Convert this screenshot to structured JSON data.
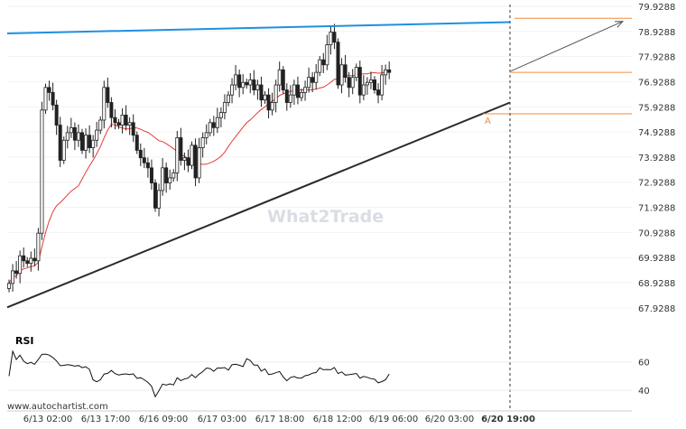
{
  "chart_data": {
    "type": "candlestick",
    "price_ticks": [
      "79.9288",
      "78.9288",
      "77.9288",
      "76.9288",
      "75.9288",
      "74.9288",
      "73.9288",
      "72.9288",
      "71.9288",
      "70.9288",
      "69.9288",
      "68.9288",
      "67.9288"
    ],
    "time_ticks": [
      "6/13 02:00",
      "6/13 17:00",
      "6/16 09:00",
      "6/17 03:00",
      "6/17 18:00",
      "6/18 12:00",
      "6/19 06:00",
      "6/20 03:00",
      "6/20 19:00"
    ],
    "ylim": [
      67.6,
      80.0
    ],
    "pattern": "Ascending Triangle",
    "resistance": {
      "from": [
        0,
        78.85
      ],
      "to": [
        140,
        79.3
      ]
    },
    "support": {
      "from": [
        0,
        67.95
      ],
      "to": [
        140,
        76.1
      ]
    },
    "levels": {
      "upper": 79.45,
      "current": 77.3,
      "low": 75.65
    },
    "point_label": "A",
    "projection": {
      "from": [
        140,
        77.35
      ],
      "to": [
        170,
        79.4
      ]
    },
    "ma_color": "#e53935",
    "resistance_color": "#1e90e0",
    "support_color": "#2b2b2b",
    "level_color": "#f08c3c",
    "closes": [
      68.9,
      69.4,
      69.3,
      70.0,
      69.8,
      69.7,
      69.9,
      69.8,
      70.9,
      75.8,
      76.7,
      76.5,
      76.0,
      75.2,
      73.8,
      74.6,
      74.9,
      75.1,
      74.6,
      74.9,
      74.2,
      74.8,
      74.3,
      74.6,
      75.0,
      75.4,
      76.7,
      76.1,
      75.5,
      75.3,
      75.2,
      75.6,
      75.2,
      75.3,
      74.8,
      74.2,
      73.9,
      73.7,
      73.5,
      72.9,
      71.9,
      72.6,
      73.5,
      72.9,
      73.1,
      73.3,
      74.7,
      73.8,
      73.9,
      73.6,
      74.4,
      73.1,
      74.3,
      74.7,
      74.9,
      75.3,
      75.1,
      75.5,
      75.7,
      76.1,
      76.4,
      76.8,
      77.2,
      76.7,
      76.9,
      76.8,
      77.0,
      76.6,
      76.8,
      76.2,
      76.4,
      75.8,
      76.1,
      76.8,
      77.4,
      76.6,
      76.1,
      76.4,
      76.8,
      76.3,
      76.5,
      76.7,
      77.1,
      76.9,
      77.3,
      77.8,
      77.6,
      78.4,
      78.9,
      78.5,
      76.8,
      77.6,
      77.1,
      76.7,
      77.1,
      77.5,
      76.4,
      76.8,
      76.9,
      77.0,
      76.6,
      76.4,
      77.2,
      77.4,
      77.3
    ],
    "rsi": {
      "title": "RSI",
      "ticks": [
        "60",
        "40"
      ],
      "range": [
        35,
        70
      ]
    },
    "x_max": 170
  },
  "credit": "www.autochartist.com",
  "watermark": "What2Trade"
}
